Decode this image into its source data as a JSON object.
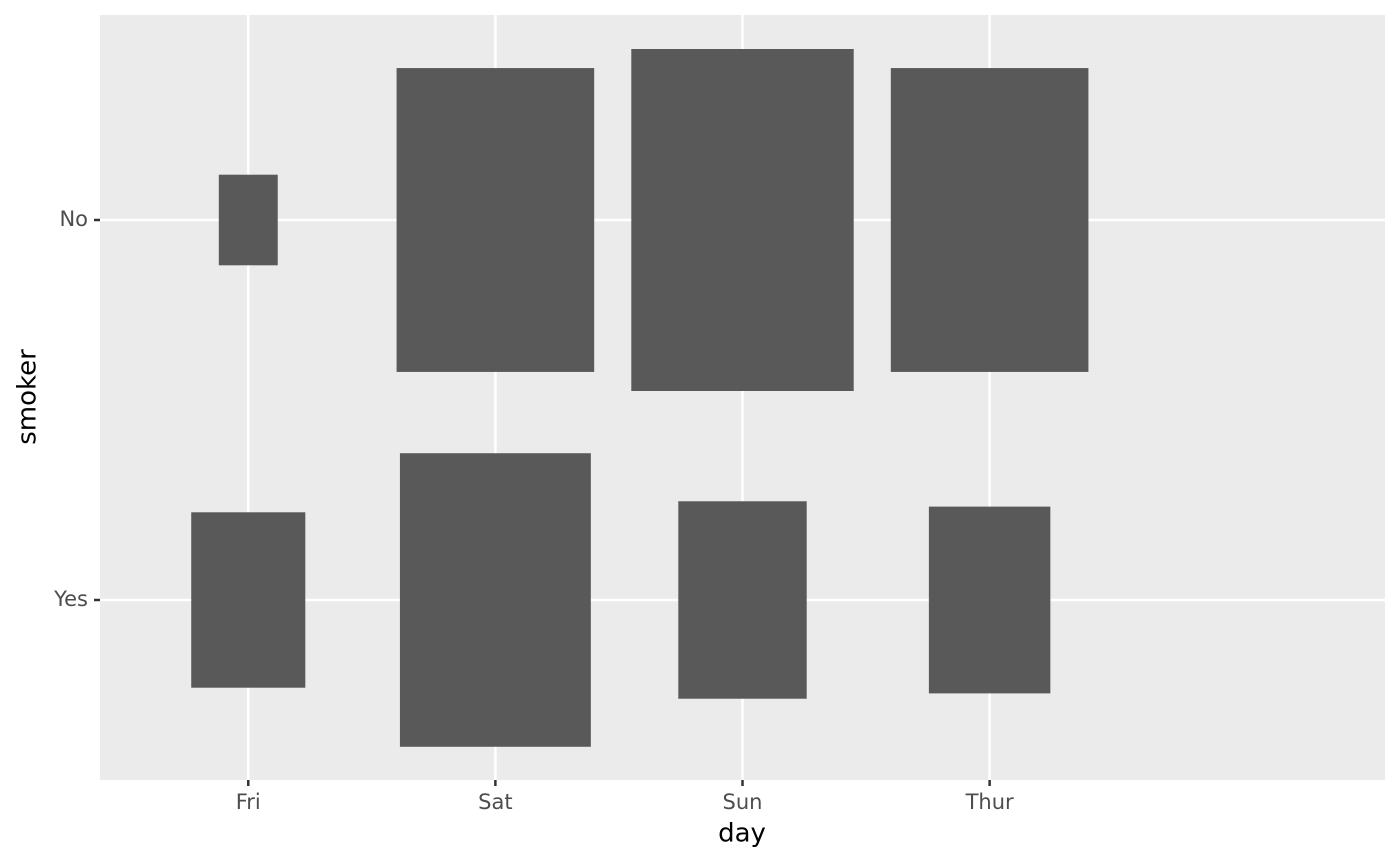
{
  "chart_data": {
    "type": "tile",
    "x_label": "day",
    "y_label": "smoker",
    "categories": [
      "Fri",
      "Sat",
      "Sun",
      "Thur"
    ],
    "color": "#595959",
    "series": [
      {
        "name": "No",
        "values": [
          4,
          45,
          57,
          45
        ]
      },
      {
        "name": "Yes",
        "values": [
          15,
          42,
          19,
          17
        ]
      }
    ],
    "grid": true
  }
}
